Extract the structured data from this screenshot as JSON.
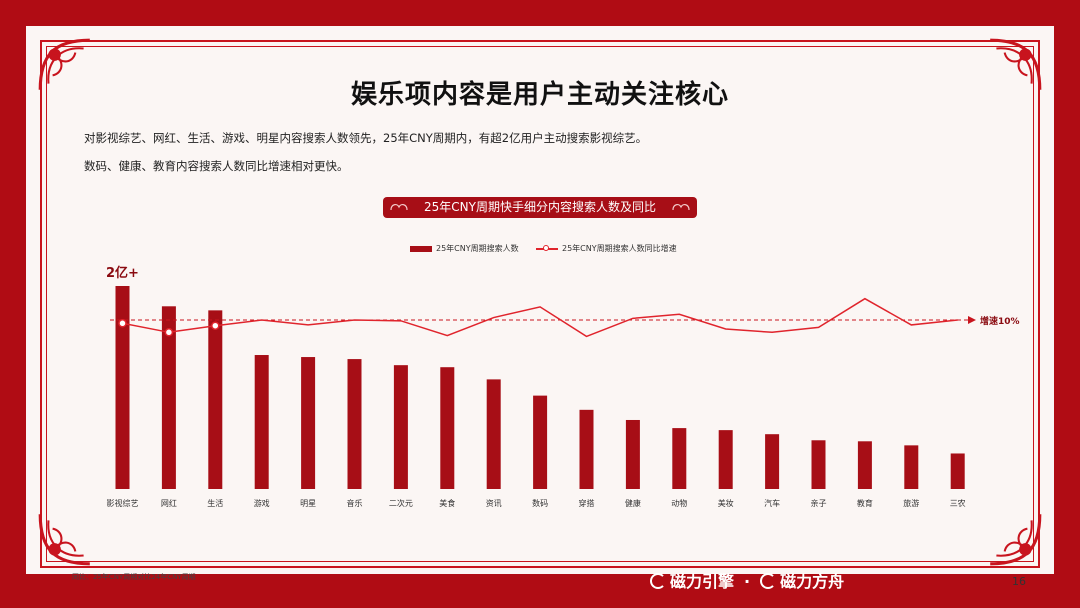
{
  "slide": {
    "title": "娱乐项内容是用户主动关注核心",
    "desc1": "对影视综艺、网红、生活、游戏、明星内容搜索人数领先，25年CNY周期内，有超2亿用户主动搜索影视综艺。",
    "desc2": "数码、健康、教育内容搜索人数同比增速相对更快。",
    "footnote": "同比：25年CNY周期对比24年CNY周期",
    "page_number": "16",
    "brand1": "磁力引擎",
    "separator": "·",
    "brand2": "磁力方舟"
  },
  "colors": {
    "frame": "#b00c14",
    "bar": "#a70e16",
    "line": "#e0242c",
    "background": "#fbf6f4"
  },
  "chart_data": {
    "type": "bar+line",
    "title": "25年CNY周期快手细分内容搜索人数及同比",
    "categories": [
      "影视综艺",
      "网红",
      "生活",
      "游戏",
      "明星",
      "音乐",
      "二次元",
      "美食",
      "资讯",
      "数码",
      "穿搭",
      "健康",
      "动物",
      "美妆",
      "汽车",
      "亲子",
      "教育",
      "旅游",
      "三农"
    ],
    "series": [
      {
        "name": "25年CNY周期搜索人数",
        "kind": "bar",
        "values": [
          1.0,
          0.9,
          0.88,
          0.66,
          0.65,
          0.64,
          0.61,
          0.6,
          0.54,
          0.46,
          0.39,
          0.34,
          0.3,
          0.29,
          0.27,
          0.24,
          0.235,
          0.215,
          0.175
        ]
      },
      {
        "name": "25年CNY周期搜索人数同比增速",
        "kind": "line",
        "values": [
          9.6,
          8.5,
          9.3,
          10.0,
          9.4,
          10.0,
          9.9,
          8.1,
          10.3,
          11.6,
          8.0,
          10.2,
          10.7,
          8.9,
          8.5,
          9.1,
          12.6,
          9.4,
          10.0
        ]
      }
    ],
    "bar_top_label": "2亿+",
    "reference_line": {
      "value": 10,
      "label": "增速10%"
    },
    "highlighted_points": [
      0,
      1,
      2
    ],
    "grid": false,
    "legend_position": "top-center"
  }
}
